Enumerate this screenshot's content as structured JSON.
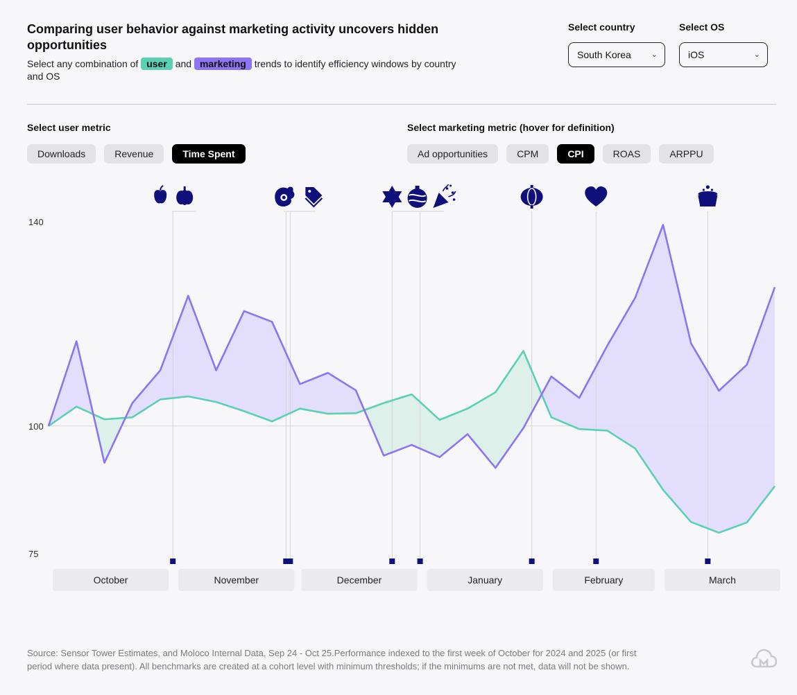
{
  "header": {
    "title": "Comparing user behavior against marketing activity uncovers hidden opportunities",
    "subtitle_pre": "Select any combination of",
    "subtitle_user": "user",
    "subtitle_and": "and",
    "subtitle_marketing": "marketing",
    "subtitle_post": "trends to identify efficiency windows by country and OS"
  },
  "filters": {
    "country_label": "Select country",
    "country_value": "South Korea",
    "os_label": "Select OS",
    "os_value": "iOS"
  },
  "user_metric": {
    "label": "Select user metric",
    "options": [
      "Downloads",
      "Revenue",
      "Time Spent"
    ],
    "selected": "Time Spent"
  },
  "marketing_metric": {
    "label": "Select marketing metric (hover for definition)",
    "options": [
      "Ad opportunities",
      "CPM",
      "CPI",
      "ROAS",
      "ARPPU"
    ],
    "selected": "CPI"
  },
  "colors": {
    "user": "#5ad1b4",
    "marketing": "#8c74f2",
    "user_fill": "#dcefe9",
    "marketing_fill": "#e2dcfb",
    "marker": "#10107a"
  },
  "chart_data": {
    "type": "line",
    "ylim": [
      75,
      140
    ],
    "yticks": [
      140,
      100,
      75
    ],
    "baseline": 100,
    "x_weeks": 27,
    "series": [
      {
        "name": "Time Spent",
        "role": "user",
        "values": [
          100,
          103.8,
          101.3,
          101.7,
          105.2,
          105.8,
          104.7,
          102.9,
          100.9,
          103.4,
          102.4,
          102.5,
          104.5,
          106.2,
          101.2,
          103.4,
          106.6,
          114.7,
          101.7,
          99.4,
          99.1,
          95.6,
          87.5,
          81.2,
          79.1,
          81.1,
          88.2
        ]
      },
      {
        "name": "CPI",
        "role": "marketing",
        "values": [
          100,
          116.6,
          92.8,
          104.5,
          110.9,
          125.5,
          110.9,
          122.5,
          120.4,
          108.2,
          110.4,
          107.0,
          94.2,
          96.3,
          93.9,
          98.4,
          91.8,
          99.6,
          109.7,
          105.5,
          115.7,
          125.1,
          139.4,
          116.2,
          106.9,
          112.0,
          127.2
        ]
      }
    ],
    "months": [
      {
        "label": "October",
        "start": 0,
        "end": 4.3
      },
      {
        "label": "November",
        "start": 4.5,
        "end": 8.8
      },
      {
        "label": "December",
        "start": 8.9,
        "end": 13.2
      },
      {
        "label": "January",
        "start": 13.4,
        "end": 17.7
      },
      {
        "label": "February",
        "start": 17.9,
        "end": 21.7
      },
      {
        "label": "March",
        "start": 21.9,
        "end": 26.2
      }
    ],
    "events": [
      {
        "x": 4.45,
        "icons": [
          "apple-icon",
          "pumpkin-icon"
        ]
      },
      {
        "x": 8.5,
        "icons": [
          "turkey-icon"
        ]
      },
      {
        "x": 8.65,
        "icons": [
          "price-tag-icon"
        ]
      },
      {
        "x": 12.3,
        "icons": [
          "star-of-david-icon"
        ]
      },
      {
        "x": 13.3,
        "icons": [
          "ornament-icon",
          "party-popper-icon"
        ]
      },
      {
        "x": 17.3,
        "icons": [
          "lantern-icon"
        ]
      },
      {
        "x": 19.6,
        "icons": [
          "heart-icon"
        ]
      },
      {
        "x": 23.6,
        "icons": [
          "dumpling-icon"
        ]
      }
    ]
  },
  "footer": {
    "source": "Source: Sensor Tower Estimates, and Moloco Internal Data, Sep 24 - Oct 25.Performance indexed to the first week of October for 2024 and 2025 (or first period where data present). All benchmarks are created at a cohort level with minimum thresholds; if the minimums are not met, data will not be shown."
  },
  "logo": {
    "icon": "cloud-m-logo-icon"
  }
}
